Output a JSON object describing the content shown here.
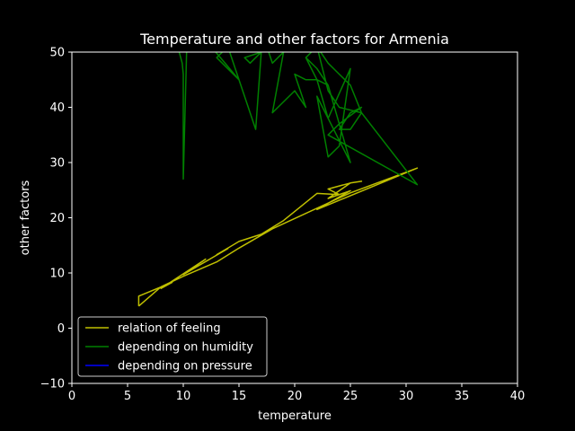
{
  "chart_data": {
    "type": "line",
    "title": "Temperature and other factors for Armenia",
    "xlabel": "temperature",
    "ylabel": "other factors",
    "xlim": [
      0,
      40
    ],
    "ylim": [
      -10,
      50
    ],
    "xticks": [
      "0",
      "5",
      "10",
      "15",
      "20",
      "25",
      "30",
      "35",
      "40"
    ],
    "yticks": [
      "50",
      "40",
      "30",
      "20",
      "10",
      "0",
      "−10"
    ],
    "grid": false,
    "legend_position": "lower-left",
    "background": "#000000",
    "series": [
      {
        "name": "relation of feeling",
        "color": "#bfbf00",
        "x": [
          6,
          6,
          9,
          8,
          12,
          10,
          14,
          13,
          15,
          17,
          19,
          22,
          24,
          23,
          25,
          26,
          25,
          23,
          25,
          22,
          31,
          25,
          18,
          15,
          13,
          10,
          8,
          6
        ],
        "y": [
          4,
          5.8,
          8.3,
          7.2,
          12.5,
          9.7,
          14.4,
          13.3,
          15.7,
          17,
          19.5,
          24.4,
          24.2,
          25.2,
          26.3,
          26.6,
          26.3,
          23.5,
          24.9,
          21.5,
          29,
          24.5,
          18,
          14.5,
          12,
          9.4,
          7.5,
          4
        ]
      },
      {
        "name": "depending on humidity",
        "color": "#008000",
        "x": [
          9.5,
          9.9,
          10,
          10,
          10.3,
          12.5,
          15,
          13,
          14,
          16.5,
          17,
          15.5,
          16,
          16.5,
          17.5,
          18,
          19,
          18,
          20,
          21,
          20,
          21,
          22,
          23,
          25,
          22,
          23,
          24,
          25,
          23,
          22,
          21,
          22,
          23,
          24,
          26,
          25,
          24,
          25,
          26,
          24,
          23,
          31,
          26,
          25,
          24,
          23,
          22,
          21,
          22,
          23
        ],
        "y": [
          51,
          48,
          46,
          27,
          50,
          51,
          45,
          49,
          51,
          36,
          50,
          49,
          48,
          49,
          51,
          48,
          50,
          39,
          43,
          40,
          46,
          45,
          45,
          44,
          30,
          42,
          31,
          33,
          47,
          38,
          45,
          49,
          51,
          43,
          40,
          39,
          36,
          36,
          39,
          40,
          37,
          35,
          26,
          39,
          44,
          46,
          48,
          51,
          49,
          47,
          44
        ]
      },
      {
        "name": "depending on pressure",
        "color": "#0000ff",
        "x": [],
        "y": []
      }
    ]
  }
}
